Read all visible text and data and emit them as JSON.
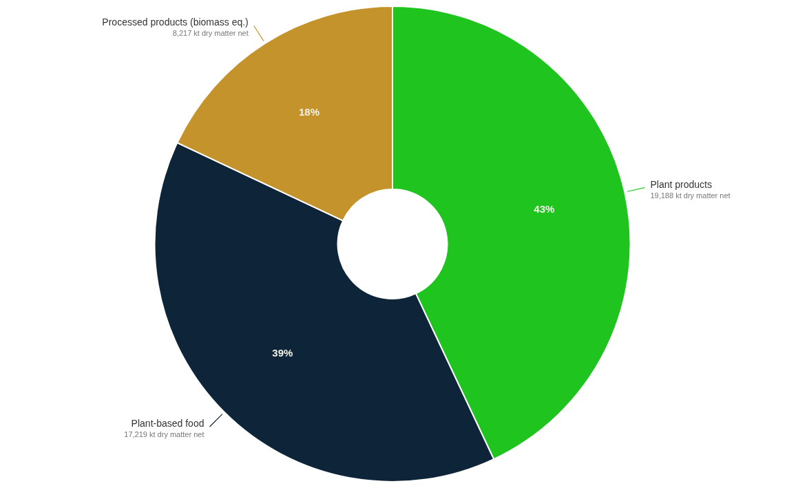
{
  "chart_data": {
    "type": "donut",
    "categories": [
      "Plant products",
      "Plant-based food",
      "Processed products (biomass eq.)"
    ],
    "values": [
      43,
      39,
      18
    ],
    "colors": [
      "#1fc41f",
      "#0e2439",
      "#c4932c"
    ],
    "value_labels": [
      "43%",
      "39%",
      "18%"
    ],
    "data_labels": true,
    "annotations": [
      "19,188 kt dry matter net",
      "17,219 kt dry matter net",
      "8,217 kt dry matter net"
    ],
    "legend": false
  }
}
